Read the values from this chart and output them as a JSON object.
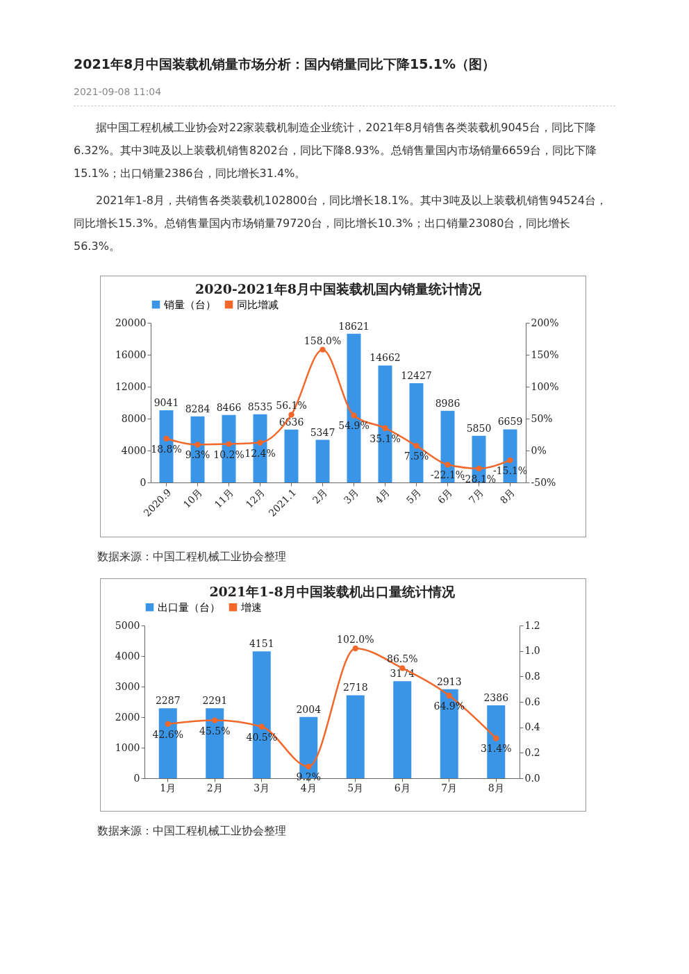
{
  "chart_data": [
    {
      "type": "other",
      "title": "2021年8月中国装载机销量市场分析：国内销量同比下降15.1%（图）",
      "annotations": [
        "2021-09-08 11:04",
        "据中国工程机械工业协会对22家装载机制造企业统计，2021年8月销售各类装载机9045台，同比下降6.32%。其中3吨及以上装载机销售8202台，同比下降8.93%。总销售量国内市场销量6659台，同比下降15.1%；出口销量2386台，同比增长31.4%。",
        "2021年1-8月，共销售各类装载机102800台，同比增长18.1%。其中3吨及以上装载机销售94524台，同比增长15.3%。总销售量国内市场销量79720台，同比增长10.3%；出口销量23080台，同比增长56.3%。"
      ]
    },
    {
      "type": "bar",
      "title": "2020-2021年8月中国装载机国内销量统计情况",
      "categories": [
        "2020.9",
        "10月",
        "11月",
        "12月",
        "2021.1",
        "2月",
        "3月",
        "4月",
        "5月",
        "6月",
        "7月",
        "8月"
      ],
      "series": [
        {
          "name": "销量（台）",
          "type": "bar",
          "color": "#3b95e6",
          "values": [
            9041,
            8284,
            8466,
            8535,
            6636,
            5347,
            18621,
            14662,
            12427,
            8986,
            5850,
            6659
          ]
        },
        {
          "name": "同比增减",
          "type": "line",
          "axis": "y2",
          "color": "#f2682a",
          "values": [
            18.8,
            9.3,
            10.2,
            12.4,
            56.1,
            158.0,
            54.9,
            35.1,
            7.5,
            -22.1,
            -28.1,
            -15.1
          ],
          "value_labels": [
            "18.8%",
            "9.3%",
            "10.2%",
            "12.4%",
            "56.1%",
            "158.0%",
            "54.9%",
            "35.1%",
            "7.5%",
            "-22.1%",
            "-28.1%",
            "-15.1%"
          ]
        }
      ],
      "ylim": [
        0,
        20000
      ],
      "yticks": [
        0,
        4000,
        8000,
        12000,
        16000,
        20000
      ],
      "y2lim": [
        -50,
        200
      ],
      "y2ticks": [
        {
          "value": -50,
          "label": "-50%"
        },
        {
          "value": 0,
          "label": "0%"
        },
        {
          "value": 50,
          "label": "50%"
        },
        {
          "value": 100,
          "label": "100%"
        },
        {
          "value": 150,
          "label": "150%"
        },
        {
          "value": 200,
          "label": "200%"
        }
      ],
      "data_labels": true,
      "legend": "top",
      "marker": "circle",
      "grid": false,
      "annotations": [
        "数据来源：中国工程机械工业协会整理"
      ]
    },
    {
      "type": "bar",
      "title": "2021年1-8月中国装载机出口量统计情况",
      "categories": [
        "1月",
        "2月",
        "3月",
        "4月",
        "5月",
        "6月",
        "7月",
        "8月"
      ],
      "series": [
        {
          "name": "出口量（台）",
          "type": "bar",
          "color": "#3b95e6",
          "values": [
            2287,
            2291,
            4151,
            2004,
            2718,
            3174,
            2913,
            2386
          ]
        },
        {
          "name": "增速",
          "type": "line",
          "axis": "y2",
          "color": "#f2682a",
          "values": [
            0.426,
            0.455,
            0.405,
            0.092,
            1.02,
            0.865,
            0.649,
            0.314
          ],
          "value_labels": [
            "42.6%",
            "45.5%",
            "40.5%",
            "9.2%",
            "102.0%",
            "86.5%",
            "64.9%",
            "31.4%"
          ]
        }
      ],
      "ylim": [
        0,
        5000
      ],
      "yticks": [
        0,
        1000,
        2000,
        3000,
        4000,
        5000
      ],
      "y2lim": [
        0,
        1.2
      ],
      "y2ticks": [
        {
          "value": 0,
          "label": "0.0"
        },
        {
          "value": 0.2,
          "label": "0.2"
        },
        {
          "value": 0.4,
          "label": "0.4"
        },
        {
          "value": 0.6,
          "label": "0.6"
        },
        {
          "value": 0.8,
          "label": "0.8"
        },
        {
          "value": 1,
          "label": "1.0"
        },
        {
          "value": 1.2,
          "label": "1.2"
        }
      ],
      "data_labels": true,
      "legend": "top",
      "marker": "circle",
      "grid": false,
      "annotations": [
        "数据来源：中国工程机械工业协会整理"
      ]
    }
  ]
}
